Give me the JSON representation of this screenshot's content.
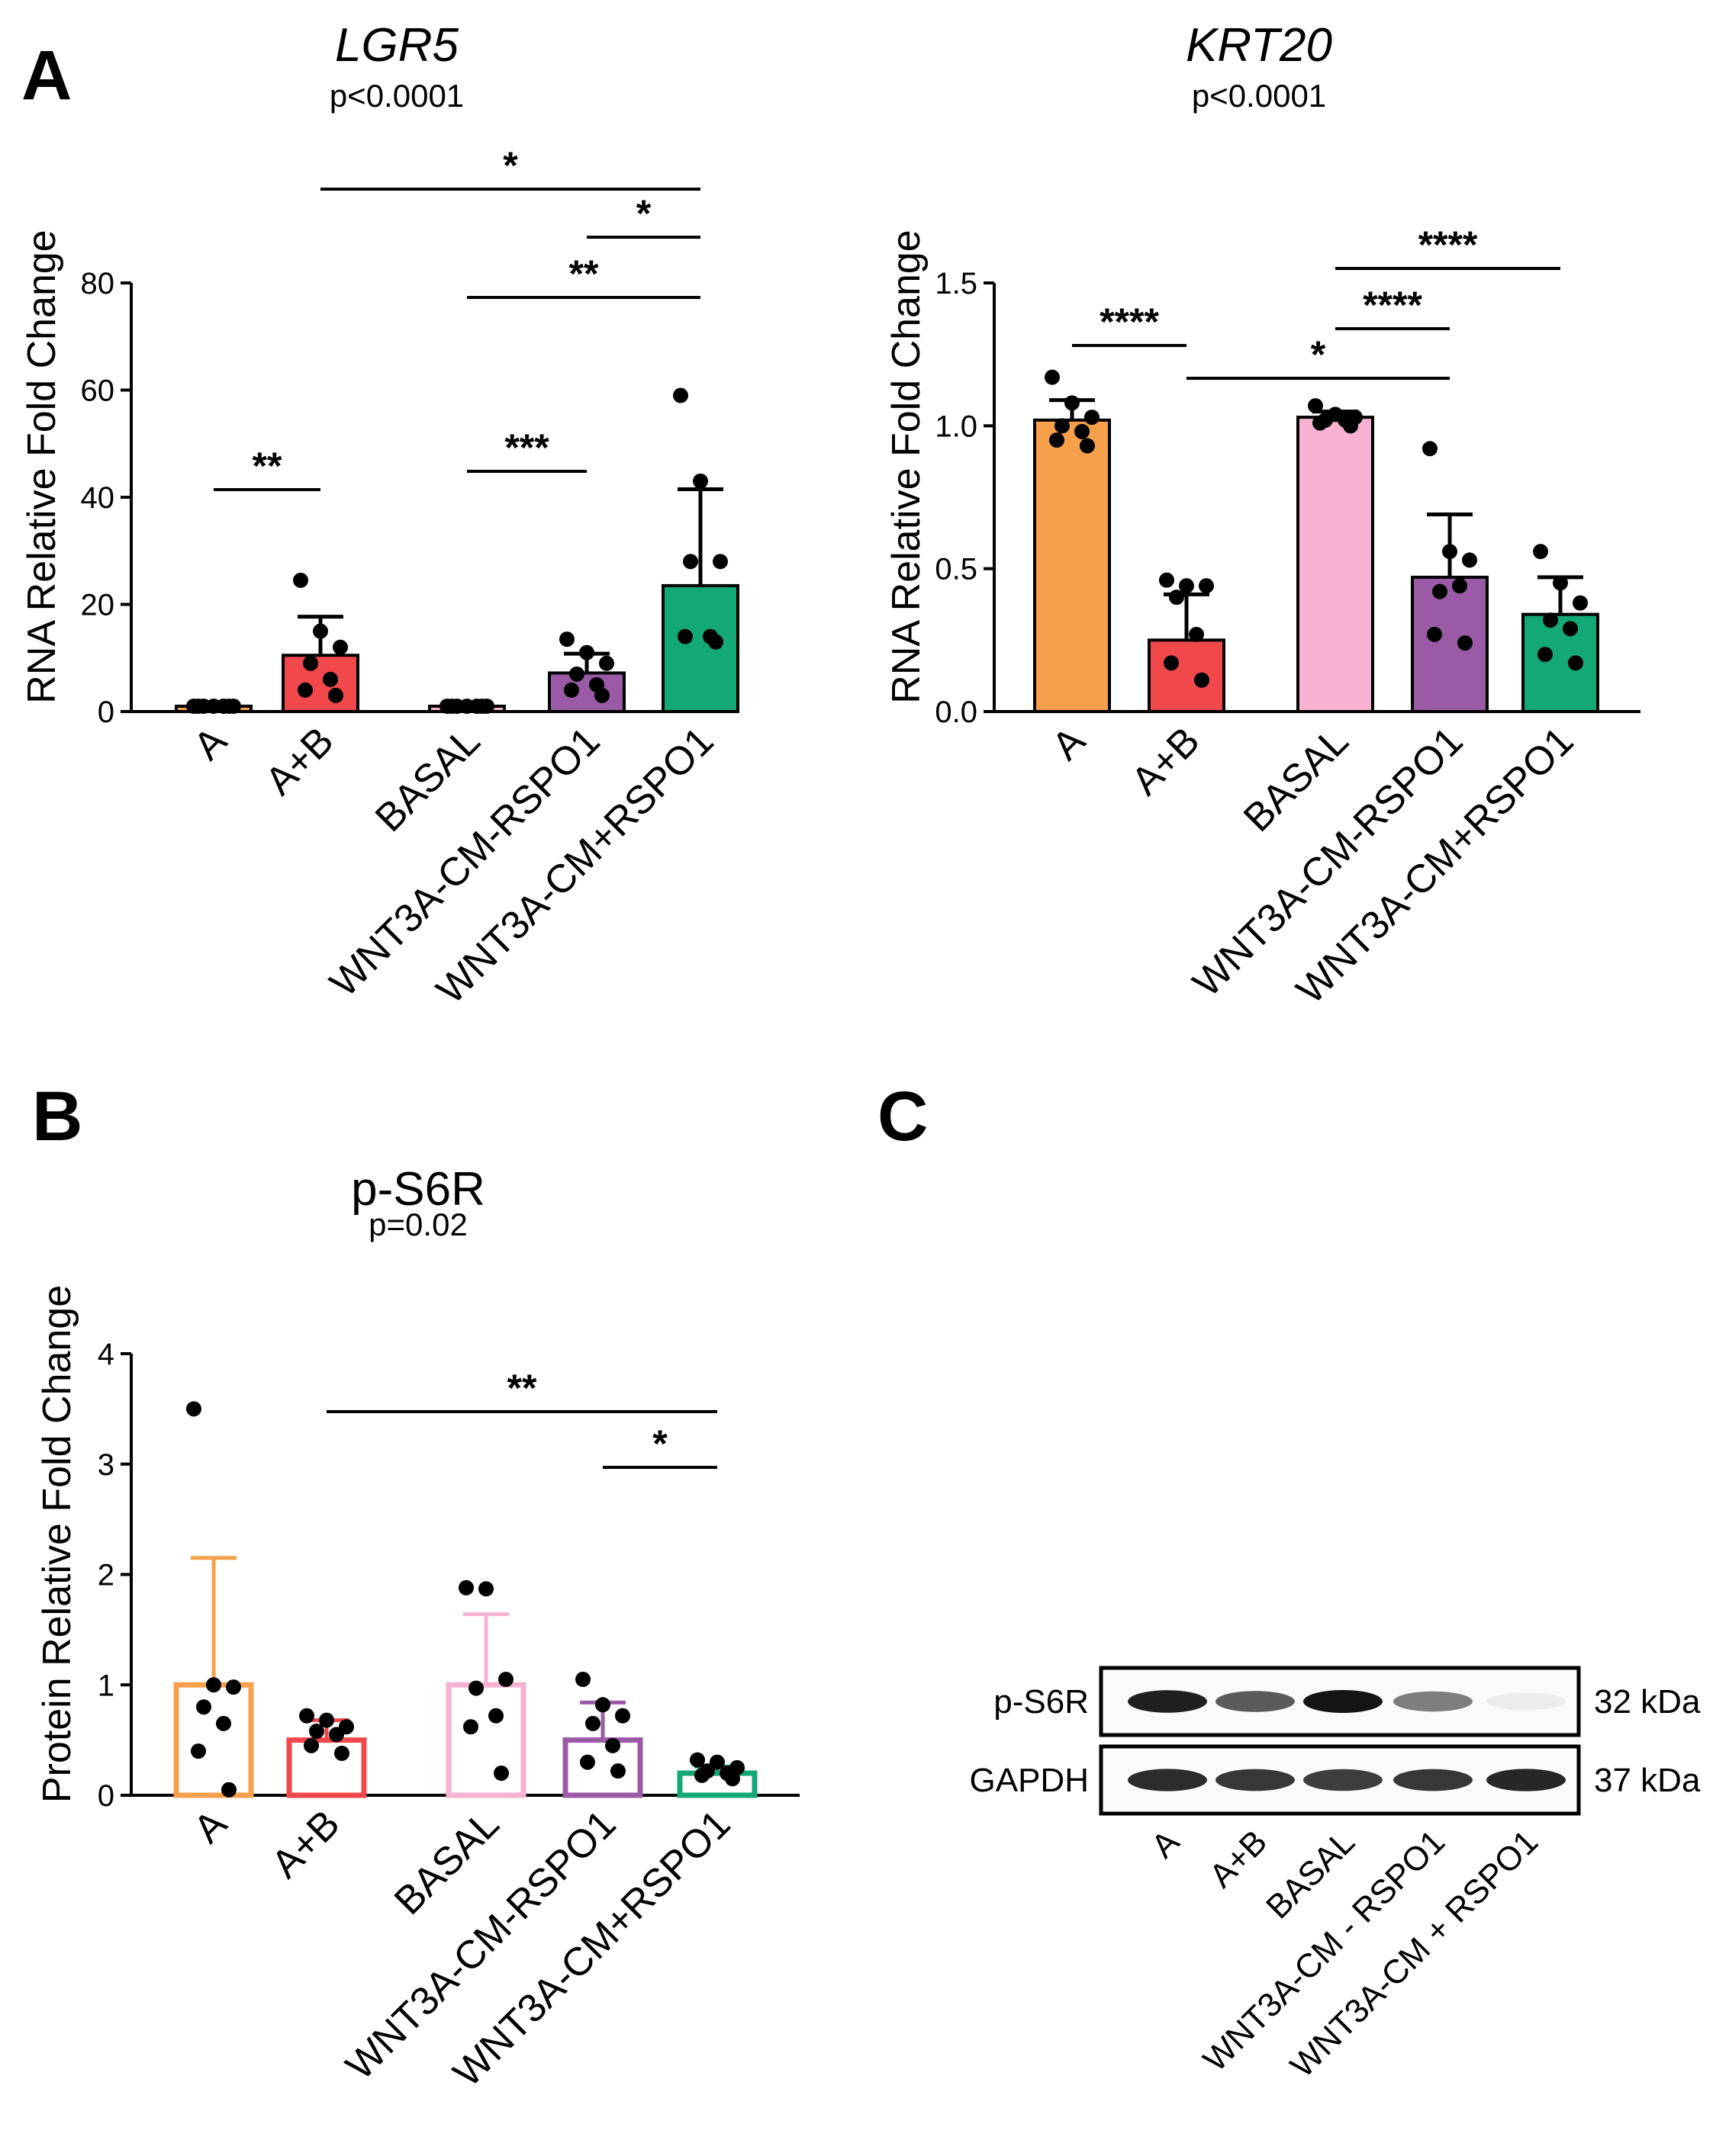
{
  "chart_data": [
    {
      "id": "lgr5",
      "panel": "A",
      "type": "bar",
      "title": "LGR5",
      "subtitle": "p<0.0001",
      "ylabel": "RNA Relative Fold Change",
      "ylim": [
        0,
        80
      ],
      "yticks": [
        "0",
        "20",
        "40",
        "60",
        "80"
      ],
      "categories": [
        "A",
        "A+B",
        "BASAL",
        "WNT3A-CM-RSPO1",
        "WNT3A-CM+RSPO1"
      ],
      "values": [
        1,
        10.5,
        1,
        7.2,
        23.5
      ],
      "errors": [
        0.3,
        7.2,
        0.2,
        3.6,
        18.0
      ],
      "colors": [
        "#f7a04b",
        "#f0484b",
        "#f7b2d2",
        "#9a5aa6",
        "#14a874"
      ],
      "points": [
        [
          1,
          1,
          1,
          1,
          1,
          1,
          1
        ],
        [
          24.5,
          15,
          12,
          9,
          6,
          4,
          3
        ],
        [
          1,
          1,
          1,
          1,
          1,
          1,
          1
        ],
        [
          13.5,
          11,
          9,
          7,
          5,
          4,
          3
        ],
        [
          59,
          43,
          28,
          28,
          14,
          14,
          13
        ]
      ],
      "significance": [
        {
          "from": 0,
          "to": 1,
          "label": "**"
        },
        {
          "from": 2,
          "to": 3,
          "label": "***"
        },
        {
          "from": 2,
          "to": 4,
          "label": "**"
        },
        {
          "from": 3,
          "to": 4,
          "label": "*"
        },
        {
          "from": 1,
          "to": 4,
          "label": "*"
        }
      ]
    },
    {
      "id": "krt20",
      "type": "bar",
      "title": "KRT20",
      "subtitle": "p<0.0001",
      "ylabel": "RNA Relative Fold Change",
      "ylim": [
        0,
        1.5
      ],
      "yticks": [
        "0.0",
        "0.5",
        "1.0",
        "1.5"
      ],
      "categories": [
        "A",
        "A+B",
        "BASAL",
        "WNT3A-CM-RSPO1",
        "WNT3A-CM+RSPO1"
      ],
      "values": [
        1.02,
        0.25,
        1.03,
        0.47,
        0.34
      ],
      "errors": [
        0.07,
        0.16,
        0.02,
        0.22,
        0.13
      ],
      "colors": [
        "#f7a04b",
        "#f0484b",
        "#f7b2d2",
        "#9a5aa6",
        "#14a874"
      ],
      "points": [
        [
          1.17,
          1.08,
          1.03,
          1.0,
          0.98,
          0.95,
          0.93
        ],
        [
          0.46,
          0.44,
          0.44,
          0.4,
          0.27,
          0.17,
          0.11
        ],
        [
          1.07,
          1.04,
          1.03,
          1.02,
          1.02,
          1.01,
          1.0
        ],
        [
          0.92,
          0.56,
          0.53,
          0.42,
          0.44,
          0.27,
          0.24
        ],
        [
          0.56,
          0.45,
          0.38,
          0.32,
          0.29,
          0.2,
          0.17
        ]
      ],
      "significance": [
        {
          "from": 0,
          "to": 1,
          "label": "****"
        },
        {
          "from": 1,
          "to": 3,
          "label": "*"
        },
        {
          "from": 2,
          "to": 3,
          "label": "****"
        },
        {
          "from": 2,
          "to": 4,
          "label": "****"
        }
      ]
    },
    {
      "id": "ps6r",
      "panel": "B",
      "type": "bar",
      "title": "p-S6R",
      "subtitle": "p=0.02",
      "ylabel": "Protein Relative Fold Change",
      "ylim": [
        0,
        4
      ],
      "yticks": [
        "0",
        "1",
        "2",
        "3",
        "4"
      ],
      "categories": [
        "A",
        "A+B",
        "BASAL",
        "WNT3A-CM-RSPO1",
        "WNT3A-CM+RSPO1"
      ],
      "values": [
        1.0,
        0.5,
        1.0,
        0.5,
        0.2
      ],
      "errors": [
        1.15,
        0.18,
        0.64,
        0.34,
        0.06
      ],
      "colors": [
        "#f7a04b",
        "#f0484b",
        "#f7b2d2",
        "#9a5aa6",
        "#14a874"
      ],
      "hollow": true,
      "points": [
        [
          3.5,
          1.0,
          0.98,
          0.8,
          0.65,
          0.4,
          0.05
        ],
        [
          0.72,
          0.68,
          0.62,
          0.58,
          0.55,
          0.45,
          0.38
        ],
        [
          1.88,
          1.87,
          1.05,
          0.97,
          0.72,
          0.62,
          0.2
        ],
        [
          1.05,
          0.82,
          0.72,
          0.65,
          0.45,
          0.3,
          0.22
        ],
        [
          0.32,
          0.3,
          0.25,
          0.22,
          0.2,
          0.18,
          0.15
        ]
      ],
      "significance": [
        {
          "from": 3,
          "to": 4,
          "label": "*"
        },
        {
          "from": 1,
          "to": 4,
          "label": "**"
        }
      ]
    }
  ],
  "blot": {
    "panel": "C",
    "rows": [
      {
        "label": "p-S6R",
        "size": "32 kDa",
        "intensities": [
          0.95,
          0.7,
          1.0,
          0.55,
          0.08
        ]
      },
      {
        "label": "GAPDH",
        "size": "37 kDa",
        "intensities": [
          0.9,
          0.85,
          0.82,
          0.85,
          0.92
        ]
      }
    ],
    "lanes": [
      "A",
      "A+B",
      "BASAL",
      "WNT3A-CM - RSPO1",
      "WNT3A-CM + RSPO1"
    ]
  }
}
